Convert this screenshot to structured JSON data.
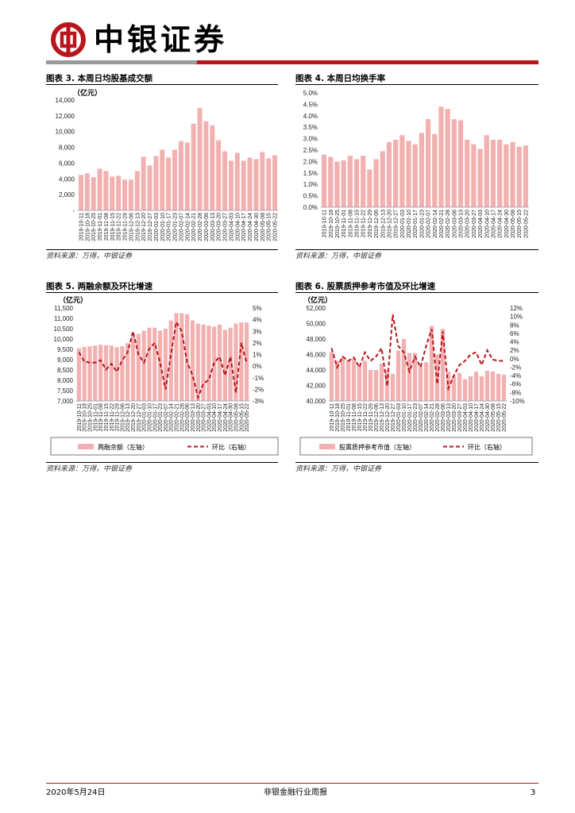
{
  "header": {
    "company_name": "中银证券",
    "brand_color": "#b8161c",
    "logo_icon": "boc-logo-icon"
  },
  "figures": [
    {
      "title": "图表 3. 本周日均股基成交额",
      "source": "资料来源：万得，中银证券"
    },
    {
      "title": "图表 4. 本周日均换手率",
      "source": "资料来源：万得，中银证券"
    },
    {
      "title": "图表 5. 两融余额及环比增速",
      "source": "资料来源：万得，中银证券"
    },
    {
      "title": "图表 6. 股票质押参考市值及环比增速",
      "source": "资料来源：万得，中银证券"
    }
  ],
  "chart_data": [
    {
      "type": "bar",
      "unit_label": "（亿元）",
      "ylim": [
        0,
        14000
      ],
      "yticks": [
        "-",
        "2,000",
        "4,000",
        "6,000",
        "8,000",
        "10,000",
        "12,000",
        "14,000"
      ],
      "categories": [
        "2019-10-11",
        "2019-10-18",
        "2019-10-25",
        "2019-11-01",
        "2019-11-08",
        "2019-11-15",
        "2019-11-22",
        "2019-11-29",
        "2019-12-06",
        "2019-12-13",
        "2019-12-20",
        "2019-12-27",
        "2020-01-03",
        "2020-01-10",
        "2020-01-17",
        "2020-01-23",
        "2020-02-07",
        "2020-02-14",
        "2020-02-21",
        "2020-02-28",
        "2020-03-06",
        "2020-03-13",
        "2020-03-20",
        "2020-03-27",
        "2020-04-03",
        "2020-04-10",
        "2020-04-17",
        "2020-04-24",
        "2020-04-30",
        "2020-05-08",
        "2020-05-15",
        "2020-05-22"
      ],
      "values": [
        4500,
        4700,
        4200,
        5300,
        5000,
        4300,
        4400,
        3900,
        3900,
        5000,
        6800,
        5700,
        6900,
        7700,
        6700,
        7700,
        8800,
        8600,
        11000,
        13000,
        11300,
        10800,
        8900,
        7500,
        6300,
        7300,
        6300,
        6700,
        6500,
        7400,
        6600,
        7000
      ],
      "bar_color": "#f2b0b0"
    },
    {
      "type": "bar",
      "ylim": [
        0,
        5
      ],
      "yticks": [
        "0.0%",
        "0.5%",
        "1.0%",
        "1.5%",
        "2.0%",
        "2.5%",
        "3.0%",
        "3.5%",
        "4.0%",
        "4.5%",
        "5.0%"
      ],
      "categories": [
        "2019-10-11",
        "2019-10-18",
        "2019-10-25",
        "2019-11-01",
        "2019-11-08",
        "2019-11-15",
        "2019-11-22",
        "2019-11-29",
        "2019-12-06",
        "2019-12-13",
        "2019-12-20",
        "2019-12-27",
        "2020-01-03",
        "2020-01-10",
        "2020-01-17",
        "2020-01-23",
        "2020-02-07",
        "2020-02-14",
        "2020-02-21",
        "2020-02-28",
        "2020-03-06",
        "2020-03-13",
        "2020-03-20",
        "2020-03-27",
        "2020-04-03",
        "2020-04-10",
        "2020-04-17",
        "2020-04-24",
        "2020-04-30",
        "2020-05-08",
        "2020-05-15",
        "2020-05-22"
      ],
      "values": [
        2.3,
        2.2,
        2.0,
        2.05,
        2.25,
        2.1,
        2.25,
        1.65,
        2.1,
        2.45,
        2.85,
        2.95,
        3.15,
        2.9,
        2.75,
        3.25,
        3.85,
        3.2,
        4.4,
        4.3,
        3.85,
        3.8,
        2.95,
        2.75,
        2.55,
        3.15,
        2.95,
        2.95,
        2.75,
        2.85,
        2.65,
        2.7
      ],
      "bar_color": "#f2b0b0"
    },
    {
      "type": "bar+line",
      "unit_label": "（亿元）",
      "ylim_left": [
        7000,
        11500
      ],
      "ylim_right": [
        -3,
        5
      ],
      "yticks_left": [
        "7,000",
        "7,500",
        "8,000",
        "8,500",
        "9,000",
        "9,500",
        "10,000",
        "10,500",
        "11,000",
        "11,500"
      ],
      "yticks_right": [
        "-3%",
        "-2%",
        "-1%",
        "0%",
        "1%",
        "2%",
        "3%",
        "4%",
        "5%"
      ],
      "categories": [
        "2019-10-11",
        "2019-10-18",
        "2019-10-25",
        "2019-11-01",
        "2019-11-08",
        "2019-11-15",
        "2019-11-22",
        "2019-11-29",
        "2019-12-06",
        "2019-12-13",
        "2019-12-20",
        "2019-12-27",
        "2020-01-03",
        "2020-01-10",
        "2020-01-17",
        "2020-01-23",
        "2020-02-07",
        "2020-02-14",
        "2020-02-21",
        "2020-02-28",
        "2020-03-06",
        "2020-03-13",
        "2020-03-20",
        "2020-03-27",
        "2020-04-03",
        "2020-04-10",
        "2020-04-17",
        "2020-04-24",
        "2020-04-30",
        "2020-05-08",
        "2020-05-15",
        "2020-05-22"
      ],
      "series": [
        {
          "name": "两融余额（左轴）",
          "type": "bar",
          "color": "#f2b0b0",
          "values": [
            9550,
            9620,
            9650,
            9680,
            9720,
            9700,
            9680,
            9600,
            9650,
            9800,
            10150,
            10250,
            10400,
            10550,
            10550,
            10400,
            10500,
            10900,
            11250,
            11250,
            11200,
            10900,
            10750,
            10700,
            10650,
            10600,
            10700,
            10450,
            10550,
            10750,
            10800,
            10800
          ]
        },
        {
          "name": "环比（右轴）",
          "type": "line",
          "color": "#b8161c",
          "values": [
            1.2,
            0.4,
            0.3,
            0.3,
            0.5,
            -0.3,
            0.2,
            -0.5,
            0.5,
            1.2,
            3.0,
            1.0,
            0.3,
            1.5,
            2.0,
            0.3,
            -2.0,
            1.0,
            3.8,
            3.0,
            0.3,
            -0.8,
            -2.7,
            -1.5,
            -1.2,
            0.3,
            0.8,
            -0.8,
            0.8,
            -2.3,
            2.0,
            0.3
          ]
        }
      ]
    },
    {
      "type": "bar+line",
      "unit_label": "（亿元）",
      "ylim_left": [
        40000,
        52000
      ],
      "ylim_right": [
        -10,
        12
      ],
      "yticks_left": [
        "40,000",
        "42,000",
        "44,000",
        "46,000",
        "48,000",
        "50,000",
        "52,000"
      ],
      "yticks_right": [
        "-10%",
        "-8%",
        "-6%",
        "-4%",
        "-2%",
        "0%",
        "2%",
        "4%",
        "6%",
        "8%",
        "10%",
        "12%"
      ],
      "categories": [
        "2019-10-11",
        "2019-10-18",
        "2019-10-25",
        "2019-11-01",
        "2019-11-08",
        "2019-11-15",
        "2019-11-22",
        "2019-11-29",
        "2019-12-06",
        "2019-12-13",
        "2019-12-20",
        "2019-12-27",
        "2020-01-03",
        "2020-01-10",
        "2020-01-17",
        "2020-01-23",
        "2020-02-07",
        "2020-02-14",
        "2020-02-21",
        "2020-02-28",
        "2020-03-06",
        "2020-03-13",
        "2020-03-20",
        "2020-03-27",
        "2020-04-03",
        "2020-04-10",
        "2020-04-17",
        "2020-04-24",
        "2020-04-30",
        "2020-05-08",
        "2020-05-15",
        "2020-05-22"
      ],
      "series": [
        {
          "name": "股票质押参考市值（左轴）",
          "type": "bar",
          "color": "#f2b0b0",
          "values": [
            46300,
            45200,
            45600,
            45300,
            45500,
            44500,
            45200,
            44000,
            44000,
            44800,
            44000,
            43500,
            46500,
            48000,
            46200,
            46200,
            44500,
            45000,
            49700,
            46000,
            49300,
            43800,
            43200,
            43600,
            42800,
            43200,
            43800,
            43200,
            43900,
            43800,
            43500,
            43400
          ]
        },
        {
          "name": "环比（右轴）",
          "type": "line",
          "color": "#b8161c",
          "values": [
            2.5,
            -2.0,
            0.5,
            -0.5,
            0.3,
            -2.0,
            1.5,
            -0.5,
            0.5,
            2.5,
            -6.5,
            10.5,
            3.0,
            1.5,
            -3.0,
            0.5,
            -2.0,
            3.0,
            7.0,
            -6.0,
            6.5,
            -7.0,
            -4.0,
            -1.5,
            -0.5,
            1.0,
            1.5,
            -1.5,
            2.0,
            -0.2,
            -0.5,
            -0.5
          ]
        }
      ]
    }
  ],
  "footer": {
    "date": "2020年5月24日",
    "report": "非银金融行业周报",
    "page": "3"
  }
}
